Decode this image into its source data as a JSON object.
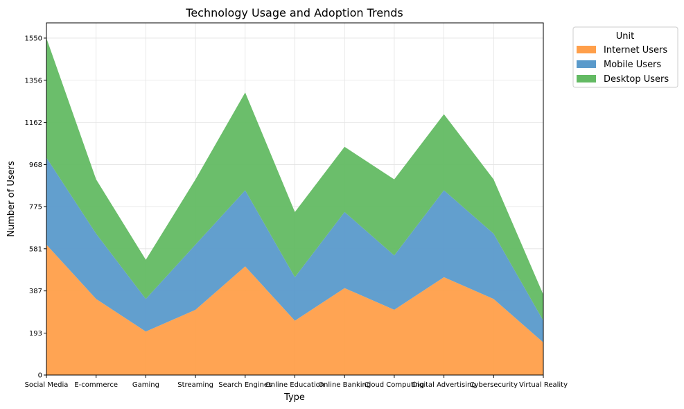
{
  "chart_data": {
    "type": "area",
    "stacked": true,
    "title": "Technology Usage and Adoption Trends",
    "xlabel": "Type",
    "ylabel": "Number of Users",
    "categories": [
      "Social Media",
      "E-commerce",
      "Gaming",
      "Streaming",
      "Search Engines",
      "Online Education",
      "Online Banking",
      "Cloud Computing",
      "Digital Advertising",
      "Cybersecurity",
      "Virtual Reality"
    ],
    "series": [
      {
        "name": "Internet Users",
        "color": "#ff9f4a",
        "values": [
          600,
          350,
          200,
          300,
          500,
          250,
          400,
          300,
          450,
          350,
          150
        ]
      },
      {
        "name": "Mobile Users",
        "color": "#5a9acb",
        "values": [
          400,
          300,
          150,
          300,
          350,
          200,
          350,
          250,
          400,
          300,
          100
        ]
      },
      {
        "name": "Desktop Users",
        "color": "#63ba63",
        "values": [
          550,
          250,
          180,
          300,
          450,
          300,
          300,
          350,
          350,
          250,
          120
        ]
      }
    ],
    "ylim": [
      0,
      1620
    ],
    "yticks": [
      0,
      193,
      387,
      581,
      775,
      968,
      1162,
      1356,
      1550
    ],
    "grid": true,
    "legend": {
      "title": "Unit",
      "position": "outside-top-right"
    }
  }
}
